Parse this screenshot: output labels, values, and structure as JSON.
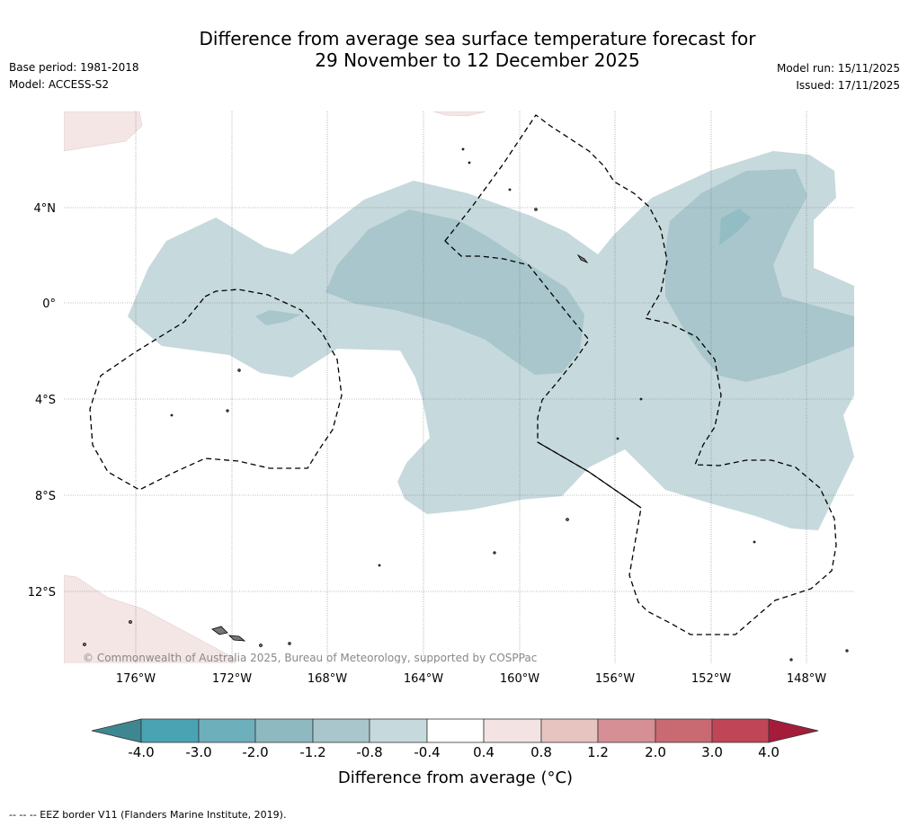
{
  "header": {
    "title_line1": "Difference from average sea surface temperature forecast for",
    "title_line2": "29 November to 12 December 2025",
    "base_period": "Base period: 1981-2018",
    "model": "Model: ACCESS-S2",
    "model_run": "Model run: 15/11/2025",
    "issued": "Issued: 17/11/2025"
  },
  "map": {
    "lat_labels": [
      "4°N",
      "0°",
      "4°S",
      "8°S",
      "12°S"
    ],
    "lon_labels": [
      "176°W",
      "172°W",
      "168°W",
      "164°W",
      "160°W",
      "156°W",
      "152°W",
      "148°W"
    ],
    "copyright": "© Commonwealth of Australia 2025, Bureau of Meteorology, supported by COSPPac"
  },
  "colorbar": {
    "ticks": [
      "-4.0",
      "-3.0",
      "-2.0",
      "-1.2",
      "-0.8",
      "-0.4",
      "0.4",
      "0.8",
      "1.2",
      "2.0",
      "3.0",
      "4.0"
    ],
    "colors": [
      "#3e8790",
      "#4aa3b2",
      "#6eafbc",
      "#8fb9c1",
      "#a8c6cb",
      "#c6d9dc",
      "#ffffff",
      "#f3e4e3",
      "#e8c4c0",
      "#d68f94",
      "#c96a73",
      "#c04657",
      "#a51c3b"
    ],
    "title": "Difference from average (°C)"
  },
  "footer": {
    "legend_text": "-- -- -- EEZ border V11 (Flanders Marine Institute, 2019)."
  }
}
